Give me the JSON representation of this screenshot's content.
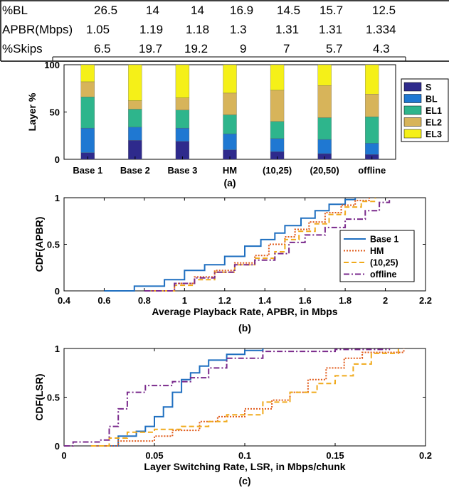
{
  "stats_table": {
    "rows": [
      {
        "label": "%BL",
        "values": [
          "26.5",
          "14",
          "14",
          "16.9",
          "14.5",
          "15.7",
          "12.5"
        ]
      },
      {
        "label": "APBR(Mbps)",
        "values": [
          "1.05",
          "1.19",
          "1.18",
          "1.3",
          "1.31",
          "1.31",
          "1.334"
        ]
      },
      {
        "label": "%Skips",
        "values": [
          "6.5",
          "19.7",
          "19.2",
          "9",
          "7",
          "5.7",
          "4.3"
        ]
      }
    ]
  },
  "chart_data": [
    {
      "type": "bar",
      "stacked": true,
      "caption": "(a)",
      "ylabel": "Layer %",
      "ylim": [
        0,
        100
      ],
      "yticks": [
        0,
        50,
        100
      ],
      "categories": [
        "Base 1",
        "Base 2",
        "Base 3",
        "HM",
        "(10,25)",
        "(20,50)",
        "offline"
      ],
      "series": [
        {
          "name": "S",
          "color": "#2e2a8c",
          "values": [
            7,
            20,
            19,
            10,
            8,
            6,
            5
          ]
        },
        {
          "name": "BL",
          "color": "#1f78d2",
          "values": [
            26,
            14,
            14,
            17,
            14,
            15,
            12
          ]
        },
        {
          "name": "EL1",
          "color": "#2eb58c",
          "values": [
            33,
            19,
            19,
            20,
            18,
            23,
            28
          ]
        },
        {
          "name": "EL2",
          "color": "#d7b45a",
          "values": [
            16,
            9,
            13,
            23,
            33,
            34,
            24
          ]
        },
        {
          "name": "EL3",
          "color": "#f5f018",
          "values": [
            18,
            38,
            35,
            30,
            27,
            22,
            31
          ]
        }
      ],
      "legend": "right"
    },
    {
      "type": "line",
      "caption": "(b)",
      "xlabel": "Average Playback Rate, APBR, in Mbps",
      "ylabel": "CDF(APBR)",
      "xlim": [
        0.4,
        2.2
      ],
      "ylim": [
        0,
        1
      ],
      "xticks": [
        "0.4",
        "0.6",
        "0.8",
        "1",
        "1.2",
        "1.4",
        "1.6",
        "1.8",
        "2",
        "2.2"
      ],
      "yticks": [
        "0",
        "0.5",
        "1"
      ],
      "legend": "center-right",
      "series": [
        {
          "name": "Base 1",
          "color": "#1f6fc0",
          "dash": "",
          "x": [
            0.6,
            0.75,
            0.9,
            1.0,
            1.1,
            1.2,
            1.3,
            1.38,
            1.45,
            1.5,
            1.58,
            1.65,
            1.72,
            1.8,
            1.85
          ],
          "y": [
            0.0,
            0.05,
            0.12,
            0.22,
            0.28,
            0.37,
            0.48,
            0.55,
            0.62,
            0.7,
            0.78,
            0.86,
            0.93,
            0.98,
            1.0
          ]
        },
        {
          "name": "HM",
          "color": "#e05a1a",
          "dash": "2,2",
          "x": [
            0.82,
            0.95,
            1.05,
            1.15,
            1.25,
            1.35,
            1.42,
            1.5,
            1.55,
            1.62,
            1.7,
            1.78,
            1.85,
            1.92
          ],
          "y": [
            0.0,
            0.08,
            0.15,
            0.22,
            0.3,
            0.38,
            0.5,
            0.58,
            0.66,
            0.74,
            0.84,
            0.92,
            0.97,
            1.0
          ]
        },
        {
          "name": "(10,25)",
          "color": "#f0aa1c",
          "dash": "7,4",
          "x": [
            0.85,
            0.95,
            1.05,
            1.15,
            1.25,
            1.35,
            1.45,
            1.5,
            1.57,
            1.65,
            1.72,
            1.8,
            1.88,
            1.95
          ],
          "y": [
            0.0,
            0.06,
            0.12,
            0.2,
            0.28,
            0.35,
            0.42,
            0.55,
            0.64,
            0.72,
            0.82,
            0.9,
            0.96,
            1.0
          ]
        },
        {
          "name": "offline",
          "color": "#7a2a8c",
          "dash": "8,3,2,3",
          "x": [
            0.8,
            0.95,
            1.05,
            1.15,
            1.25,
            1.35,
            1.45,
            1.52,
            1.6,
            1.7,
            1.8,
            1.9,
            1.97,
            2.02
          ],
          "y": [
            0.0,
            0.08,
            0.14,
            0.2,
            0.28,
            0.33,
            0.4,
            0.52,
            0.6,
            0.68,
            0.77,
            0.86,
            0.95,
            1.0
          ]
        }
      ]
    },
    {
      "type": "line",
      "caption": "(c)",
      "xlabel": "Layer Switching Rate, LSR, in Mbps/chunk",
      "ylabel": "CDF(LSR)",
      "xlim": [
        0,
        0.2
      ],
      "ylim": [
        0,
        1
      ],
      "xticks": [
        "0",
        "0.05",
        "0.1",
        "0.15",
        "0.2"
      ],
      "yticks": [
        "0",
        "0.5",
        "1"
      ],
      "series": [
        {
          "name": "Base 1",
          "color": "#1f6fc0",
          "dash": "",
          "x": [
            0.025,
            0.03,
            0.04,
            0.045,
            0.05,
            0.055,
            0.06,
            0.065,
            0.07,
            0.075,
            0.08,
            0.09,
            0.1,
            0.11
          ],
          "y": [
            0.0,
            0.1,
            0.15,
            0.2,
            0.3,
            0.4,
            0.55,
            0.68,
            0.75,
            0.82,
            0.88,
            0.94,
            0.98,
            1.0
          ]
        },
        {
          "name": "HM",
          "color": "#e05a1a",
          "dash": "2,2",
          "x": [
            0.015,
            0.03,
            0.05,
            0.06,
            0.075,
            0.085,
            0.1,
            0.115,
            0.125,
            0.135,
            0.145,
            0.155,
            0.165,
            0.188
          ],
          "y": [
            0.0,
            0.05,
            0.1,
            0.16,
            0.25,
            0.3,
            0.38,
            0.47,
            0.55,
            0.68,
            0.8,
            0.9,
            0.96,
            1.0
          ]
        },
        {
          "name": "(10,25)",
          "color": "#f0aa1c",
          "dash": "7,4",
          "x": [
            0.015,
            0.025,
            0.035,
            0.05,
            0.065,
            0.08,
            0.09,
            0.11,
            0.125,
            0.14,
            0.15,
            0.16,
            0.17,
            0.185
          ],
          "y": [
            0.0,
            0.08,
            0.14,
            0.17,
            0.2,
            0.25,
            0.32,
            0.45,
            0.55,
            0.64,
            0.72,
            0.84,
            0.95,
            1.0
          ]
        },
        {
          "name": "offline",
          "color": "#7a2a8c",
          "dash": "8,3,2,3",
          "x": [
            0.0,
            0.005,
            0.02,
            0.025,
            0.03,
            0.035,
            0.045,
            0.06,
            0.07,
            0.08,
            0.09,
            0.11,
            0.15,
            0.18
          ],
          "y": [
            0.0,
            0.04,
            0.06,
            0.2,
            0.38,
            0.55,
            0.62,
            0.66,
            0.7,
            0.8,
            0.9,
            0.97,
            0.99,
            1.0
          ]
        }
      ]
    }
  ]
}
